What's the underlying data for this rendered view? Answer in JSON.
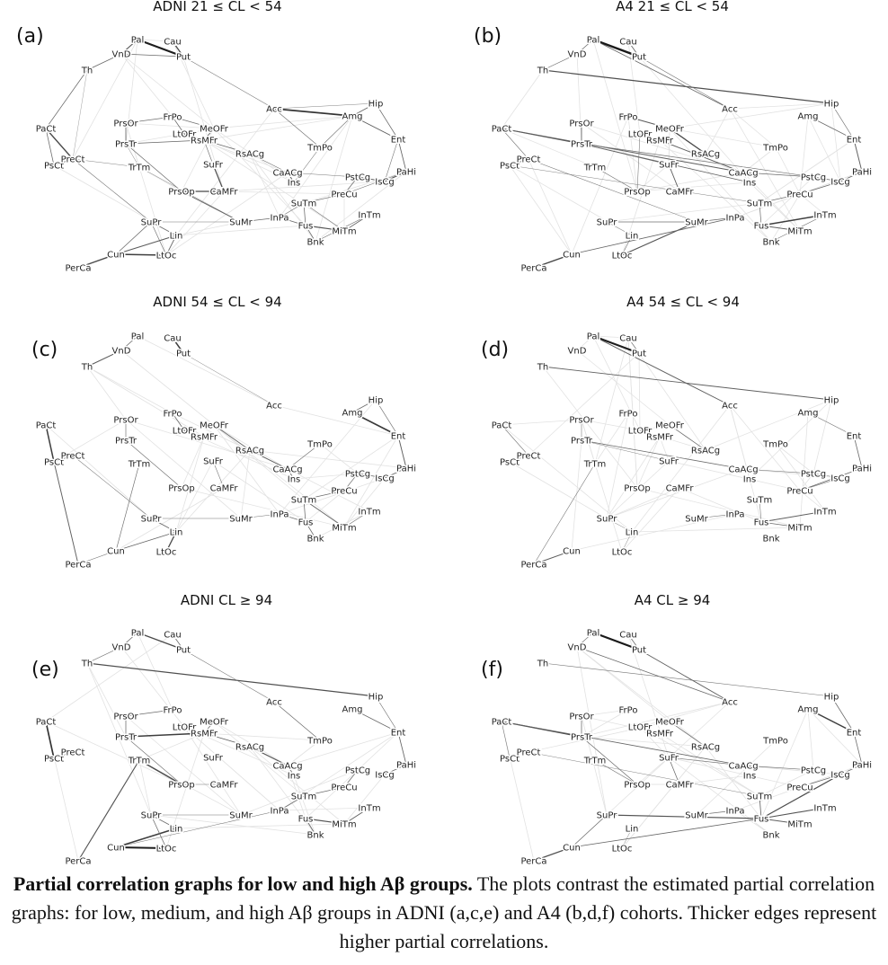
{
  "panels": [
    {
      "letter": "(a)",
      "title": "ADNI 21 ≤  CL  < 54",
      "edges": [
        [
          "Pal",
          "Put",
          2.2
        ],
        [
          "Pal",
          "VnD",
          1.2
        ],
        [
          "Cau",
          "Put",
          1.4
        ],
        [
          "VnD",
          "Th",
          0.9
        ],
        [
          "VnD",
          "Put",
          0.8
        ],
        [
          "Th",
          "PaCt",
          0.8
        ],
        [
          "Th",
          "PreCt",
          0.4
        ],
        [
          "Put",
          "Acc",
          0.6
        ],
        [
          "Acc",
          "Amg",
          1.8
        ],
        [
          "Acc",
          "Hip",
          0.5
        ],
        [
          "Acc",
          "TmPo",
          0.7
        ],
        [
          "Hip",
          "Amg",
          0.9
        ],
        [
          "Hip",
          "Ent",
          0.8
        ],
        [
          "Amg",
          "Ent",
          1.0
        ],
        [
          "Amg",
          "TmPo",
          0.7
        ],
        [
          "Ent",
          "PaHi",
          0.9
        ],
        [
          "Ent",
          "IsCg",
          0.6
        ],
        [
          "PaHi",
          "IsCg",
          1.2
        ],
        [
          "PaHi",
          "PreCu",
          0.7
        ],
        [
          "PaCt",
          "PreCt",
          1.4
        ],
        [
          "PaCt",
          "PsCt",
          0.8
        ],
        [
          "PsCt",
          "PreCt",
          0.8
        ],
        [
          "PrsOr",
          "FrPo",
          0.7
        ],
        [
          "PrsOr",
          "PrsTr",
          0.9
        ],
        [
          "FrPo",
          "LtOFr",
          0.8
        ],
        [
          "FrPo",
          "MeOFr",
          0.7
        ],
        [
          "LtOFr",
          "RsMFr",
          1.1
        ],
        [
          "MeOFr",
          "RsMFr",
          1.0
        ],
        [
          "RsMFr",
          "RsACg",
          0.8
        ],
        [
          "RsACg",
          "CaACg",
          0.7
        ],
        [
          "PrsTr",
          "PrsOp",
          0.8
        ],
        [
          "PrsTr",
          "RsMFr",
          0.9
        ],
        [
          "PrsOp",
          "CaMFr",
          1.4
        ],
        [
          "PrsOp",
          "SuMr",
          1.0
        ],
        [
          "SuFr",
          "CaMFr",
          1.3
        ],
        [
          "SuFr",
          "RsMFr",
          0.7
        ],
        [
          "CaACg",
          "Ins",
          1.1
        ],
        [
          "CaACg",
          "PstCg",
          0.6
        ],
        [
          "PstCg",
          "IsCg",
          1.0
        ],
        [
          "PstCg",
          "PreCu",
          0.8
        ],
        [
          "PreCu",
          "SuTm",
          0.7
        ],
        [
          "SuTm",
          "Fus",
          0.8
        ],
        [
          "SuTm",
          "InPa",
          0.7
        ],
        [
          "SuTm",
          "MiTm",
          0.6
        ],
        [
          "InPa",
          "Fus",
          0.9
        ],
        [
          "InPa",
          "SuMr",
          0.8
        ],
        [
          "Fus",
          "MiTm",
          1.2
        ],
        [
          "MiTm",
          "InTm",
          0.9
        ],
        [
          "InTm",
          "Bnk",
          0.7
        ],
        [
          "Fus",
          "Bnk",
          0.8
        ],
        [
          "SuPr",
          "Lin",
          0.8
        ],
        [
          "SuPr",
          "Cun",
          0.8
        ],
        [
          "SuPr",
          "LtOc",
          0.7
        ],
        [
          "Lin",
          "Cun",
          1.1
        ],
        [
          "Lin",
          "LtOc",
          0.9
        ],
        [
          "Cun",
          "LtOc",
          1.6
        ],
        [
          "Cun",
          "PerCa",
          1.4
        ],
        [
          "TrTm",
          "SuMr",
          0.5
        ],
        [
          "TrTm",
          "PrsTr",
          0.5
        ],
        [
          "PreCt",
          "TrTm",
          0.5
        ],
        [
          "PreCt",
          "SuPr",
          0.6
        ],
        [
          "SuPr",
          "SuMr",
          0.6
        ],
        [
          "Ins",
          "TmPo",
          0.6
        ]
      ]
    },
    {
      "letter": "(b)",
      "title": "A4 21 ≤  CL  < 54",
      "edges": [
        [
          "Pal",
          "Put",
          2.4
        ],
        [
          "Cau",
          "Put",
          0.9
        ],
        [
          "Pal",
          "VnD",
          0.8
        ],
        [
          "VnD",
          "Th",
          0.7
        ],
        [
          "Th",
          "Hip",
          1.3
        ],
        [
          "Pal",
          "Acc",
          0.9
        ],
        [
          "Put",
          "Acc",
          0.6
        ],
        [
          "Amg",
          "Ent",
          0.8
        ],
        [
          "Hip",
          "Ent",
          0.7
        ],
        [
          "Ent",
          "PaHi",
          1.0
        ],
        [
          "PaHi",
          "IsCg",
          1.0
        ],
        [
          "PaCt",
          "PrsTr",
          1.2
        ],
        [
          "PaCt",
          "CaACg",
          1.0
        ],
        [
          "PaCt",
          "PreCt",
          0.6
        ],
        [
          "PsCt",
          "PreCt",
          0.7
        ],
        [
          "PrsOr",
          "PrsTr",
          0.9
        ],
        [
          "FrPo",
          "MeOFr",
          1.1
        ],
        [
          "MeOFr",
          "RsACg",
          1.4
        ],
        [
          "RsMFr",
          "CaACg",
          1.0
        ],
        [
          "LtOFr",
          "PrsOp",
          0.6
        ],
        [
          "PrsTr",
          "SuFr",
          0.9
        ],
        [
          "PrsTr",
          "Ins",
          0.9
        ],
        [
          "PrsTr",
          "PstCg",
          0.7
        ],
        [
          "TrTm",
          "PrsOp",
          0.7
        ],
        [
          "SuFr",
          "CaMFr",
          1.0
        ],
        [
          "CaACg",
          "PstCg",
          0.8
        ],
        [
          "PstCg",
          "IsCg",
          0.8
        ],
        [
          "PreCu",
          "IsCg",
          0.9
        ],
        [
          "SuTm",
          "PreCu",
          0.7
        ],
        [
          "SuTm",
          "Fus",
          0.7
        ],
        [
          "Fus",
          "InTm",
          1.6
        ],
        [
          "Fus",
          "MiTm",
          1.0
        ],
        [
          "InPa",
          "SuMr",
          0.9
        ],
        [
          "SuMr",
          "SuPr",
          0.7
        ],
        [
          "SuMr",
          "LtOc",
          1.2
        ],
        [
          "Lin",
          "LtOc",
          0.7
        ],
        [
          "Cun",
          "PerCa",
          1.5
        ],
        [
          "Cun",
          "InPa",
          0.9
        ],
        [
          "SuPr",
          "Lin",
          0.5
        ],
        [
          "PreCt",
          "SuMr",
          0.6
        ],
        [
          "PsCt",
          "SuTm",
          0.5
        ],
        [
          "Bnk",
          "InTm",
          0.6
        ]
      ]
    },
    {
      "letter": "(c)",
      "title": "ADNI 54 ≤  CL  < 94",
      "edges": [
        [
          "Cau",
          "Put",
          1.6
        ],
        [
          "Pal",
          "VnD",
          0.8
        ],
        [
          "VnD",
          "Th",
          1.1
        ],
        [
          "Put",
          "Acc",
          0.5
        ],
        [
          "Hip",
          "Amg",
          0.8
        ],
        [
          "Amg",
          "Ent",
          1.7
        ],
        [
          "Hip",
          "Ent",
          0.7
        ],
        [
          "Ent",
          "PaHi",
          1.0
        ],
        [
          "PaHi",
          "IsCg",
          0.9
        ],
        [
          "PaCt",
          "PsCt",
          1.6
        ],
        [
          "PsCt",
          "PerCa",
          1.0
        ],
        [
          "PsCt",
          "PreCt",
          0.7
        ],
        [
          "PreCt",
          "SuPr",
          0.6
        ],
        [
          "PrsOr",
          "PrsTr",
          0.7
        ],
        [
          "FrPo",
          "LtOFr",
          0.8
        ],
        [
          "LtOFr",
          "RsMFr",
          1.0
        ],
        [
          "MeOFr",
          "RsACg",
          0.9
        ],
        [
          "RsACg",
          "CaACg",
          1.0
        ],
        [
          "CaACg",
          "Ins",
          0.9
        ],
        [
          "CaACg",
          "TmPo",
          0.7
        ],
        [
          "PstCg",
          "IsCg",
          0.9
        ],
        [
          "PstCg",
          "PreCu",
          0.7
        ],
        [
          "PreCu",
          "SuTm",
          0.8
        ],
        [
          "SuTm",
          "Fus",
          0.8
        ],
        [
          "SuTm",
          "MiTm",
          0.9
        ],
        [
          "Fus",
          "Bnk",
          0.8
        ],
        [
          "InPa",
          "Fus",
          0.7
        ],
        [
          "MiTm",
          "InTm",
          0.7
        ],
        [
          "SuFr",
          "CaMFr",
          0.6
        ],
        [
          "PrsTr",
          "PrsOp",
          0.7
        ],
        [
          "TrTm",
          "Cun",
          0.7
        ],
        [
          "SuPr",
          "SuMr",
          0.6
        ],
        [
          "Lin",
          "SuPr",
          0.9
        ],
        [
          "Lin",
          "LtOc",
          1.4
        ],
        [
          "Cun",
          "Lin",
          0.9
        ],
        [
          "Cun",
          "PerCa",
          0.6
        ],
        [
          "SuMr",
          "InPa",
          0.6
        ]
      ]
    },
    {
      "letter": "(d)",
      "title": "A4 54 ≤  CL  < 94",
      "edges": [
        [
          "Pal",
          "Put",
          2.2
        ],
        [
          "Cau",
          "Put",
          0.7
        ],
        [
          "Pal",
          "Acc",
          1.0
        ],
        [
          "Th",
          "Hip",
          1.0
        ],
        [
          "Amg",
          "Ent",
          0.7
        ],
        [
          "Ent",
          "PaHi",
          0.8
        ],
        [
          "PaHi",
          "PreCu",
          0.9
        ],
        [
          "IsCg",
          "PreCu",
          0.6
        ],
        [
          "PaCt",
          "PreCt",
          0.6
        ],
        [
          "PrsOr",
          "PrsTr",
          0.6
        ],
        [
          "PrsTr",
          "CaACg",
          0.8
        ],
        [
          "MeOFr",
          "RsACg",
          0.8
        ],
        [
          "LtOFr",
          "RsMFr",
          0.6
        ],
        [
          "CaACg",
          "PstCg",
          0.6
        ],
        [
          "PstCg",
          "IsCg",
          0.6
        ],
        [
          "SuTm",
          "Fus",
          0.6
        ],
        [
          "Fus",
          "InTm",
          1.0
        ],
        [
          "Fus",
          "MiTm",
          0.8
        ],
        [
          "SuMr",
          "InPa",
          0.6
        ],
        [
          "Cun",
          "PerCa",
          1.0
        ],
        [
          "PerCa",
          "TrTm",
          0.6
        ],
        [
          "SuPr",
          "Lin",
          0.5
        ],
        [
          "LtOc",
          "Lin",
          0.5
        ],
        [
          "PrsTr",
          "SuFr",
          0.5
        ],
        [
          "PsCt",
          "PreCt",
          0.5
        ]
      ]
    },
    {
      "letter": "(e)",
      "title": "ADNI CL  ≥ 94",
      "edges": [
        [
          "Pal",
          "Put",
          1.4
        ],
        [
          "Cau",
          "Put",
          0.8
        ],
        [
          "Pal",
          "VnD",
          0.8
        ],
        [
          "VnD",
          "Th",
          0.7
        ],
        [
          "Th",
          "Hip",
          1.3
        ],
        [
          "Put",
          "Acc",
          0.6
        ],
        [
          "Acc",
          "TmPo",
          0.8
        ],
        [
          "Amg",
          "Ent",
          0.8
        ],
        [
          "Hip",
          "Ent",
          0.7
        ],
        [
          "Ent",
          "PaHi",
          0.9
        ],
        [
          "PaHi",
          "IsCg",
          0.8
        ],
        [
          "PaCt",
          "PsCt",
          1.8
        ],
        [
          "PsCt",
          "PreCt",
          0.6
        ],
        [
          "PrsOr",
          "FrPo",
          0.8
        ],
        [
          "PrsOr",
          "PrsTr",
          0.8
        ],
        [
          "PrsTr",
          "RsMFr",
          1.6
        ],
        [
          "PrsTr",
          "PrsOp",
          0.7
        ],
        [
          "TrTm",
          "PrsOp",
          1.4
        ],
        [
          "MeOFr",
          "RsMFr",
          0.8
        ],
        [
          "RsMFr",
          "RsACg",
          0.9
        ],
        [
          "RsACg",
          "CaACg",
          1.2
        ],
        [
          "CaACg",
          "Ins",
          0.8
        ],
        [
          "PstCg",
          "PreCu",
          0.8
        ],
        [
          "PreCu",
          "SuTm",
          0.8
        ],
        [
          "SuTm",
          "InPa",
          0.8
        ],
        [
          "Fus",
          "MiTm",
          1.2
        ],
        [
          "MiTm",
          "InTm",
          1.0
        ],
        [
          "Fus",
          "Bnk",
          0.9
        ],
        [
          "TrTm",
          "PerCa",
          1.2
        ],
        [
          "Cun",
          "LtOc",
          2.2
        ],
        [
          "Cun",
          "Lin",
          1.6
        ],
        [
          "SuPr",
          "Lin",
          0.8
        ],
        [
          "SuPr",
          "LtOc",
          0.8
        ],
        [
          "SuPr",
          "SuMr",
          0.6
        ],
        [
          "Cun",
          "InPa",
          0.6
        ],
        [
          "PrsOp",
          "CaMFr",
          0.6
        ]
      ]
    },
    {
      "letter": "(f)",
      "title": "A4 CL  ≥ 94",
      "edges": [
        [
          "Pal",
          "Put",
          2.3
        ],
        [
          "Cau",
          "Put",
          0.8
        ],
        [
          "Pal",
          "VnD",
          0.7
        ],
        [
          "VnD",
          "Acc",
          0.8
        ],
        [
          "Put",
          "Acc",
          1.0
        ],
        [
          "Th",
          "Hip",
          0.6
        ],
        [
          "Amg",
          "Ent",
          1.6
        ],
        [
          "Hip",
          "Ent",
          0.8
        ],
        [
          "Ent",
          "PaHi",
          0.8
        ],
        [
          "PaHi",
          "IsCg",
          0.8
        ],
        [
          "IsCg",
          "Fus",
          1.3
        ],
        [
          "IsCg",
          "PreCu",
          0.8
        ],
        [
          "PaCt",
          "PrsTr",
          1.4
        ],
        [
          "PaCt",
          "CaACg",
          0.9
        ],
        [
          "PaCt",
          "PsCt",
          0.6
        ],
        [
          "PrsOr",
          "PrsTr",
          0.8
        ],
        [
          "PrsTr",
          "PrsOp",
          0.8
        ],
        [
          "MeOFr",
          "RsACg",
          0.8
        ],
        [
          "SuFr",
          "CaACg",
          0.7
        ],
        [
          "CaACg",
          "PstCg",
          0.7
        ],
        [
          "SuFr",
          "CaMFr",
          0.8
        ],
        [
          "SuTm",
          "Fus",
          0.9
        ],
        [
          "Fus",
          "InTm",
          1.2
        ],
        [
          "Fus",
          "MiTm",
          1.0
        ],
        [
          "SuMr",
          "InPa",
          0.7
        ],
        [
          "SuPr",
          "Fus",
          1.2
        ],
        [
          "SuPr",
          "Cun",
          0.8
        ],
        [
          "Cun",
          "PerCa",
          1.3
        ],
        [
          "Cun",
          "Fus",
          0.9
        ],
        [
          "TrTm",
          "PrsOp",
          0.7
        ],
        [
          "PreCt",
          "SuTm",
          0.5
        ],
        [
          "LtOc",
          "Lin",
          0.5
        ]
      ]
    }
  ],
  "caption": {
    "title": "Partial correlation graphs for low and high Aβ groups.",
    "text": " The plots contrast the estimated partial correlation graphs: for low, medium, and high Aβ groups in ADNI (a,c,e) and A4 (b,d,f) cohorts. Thicker edges represent higher partial correlations."
  }
}
